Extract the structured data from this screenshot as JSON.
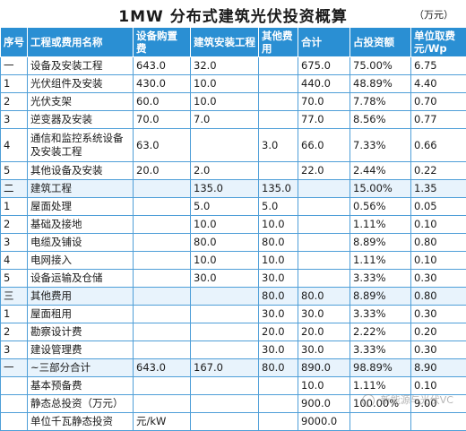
{
  "title": "1MW 分布式建筑光伏投资概算",
  "unit": "（万元）",
  "headers": {
    "seq": "序号",
    "name": "工程或费用名称",
    "equipment": "设备购置费",
    "construction": "建筑安装工程",
    "other": "其他费用",
    "total": "合计",
    "ratio": "占投资额",
    "unit_cost": "单位取费元/Wp"
  },
  "rows": [
    {
      "seq": "一",
      "name": "设备及安装工程",
      "equipment": "643.0",
      "construction": "32.0",
      "other": "",
      "total": "675.0",
      "ratio": "75.00%",
      "unit_cost": "6.75"
    },
    {
      "seq": "1",
      "name": "光伏组件及安装",
      "equipment": "430.0",
      "construction": "10.0",
      "other": "",
      "total": "440.0",
      "ratio": "48.89%",
      "unit_cost": "4.40"
    },
    {
      "seq": "2",
      "name": "光伏支架",
      "equipment": "60.0",
      "construction": "10.0",
      "other": "",
      "total": "70.0",
      "ratio": "7.78%",
      "unit_cost": "0.70"
    },
    {
      "seq": "3",
      "name": "逆变器及安装",
      "equipment": "70.0",
      "construction": "7.0",
      "other": "",
      "total": "77.0",
      "ratio": "8.56%",
      "unit_cost": "0.77"
    },
    {
      "seq": "4",
      "name": "通信和监控系统设备及安装工程",
      "equipment": "63.0",
      "construction": "",
      "other": "3.0",
      "total": "66.0",
      "ratio": "7.33%",
      "unit_cost": "0.66"
    },
    {
      "seq": "5",
      "name": "其他设备及安装",
      "equipment": "20.0",
      "construction": "2.0",
      "other": "",
      "total": "22.0",
      "ratio": "2.44%",
      "unit_cost": "0.22"
    },
    {
      "seq": "二",
      "name": "建筑工程",
      "equipment": "",
      "construction": "135.0",
      "other": "135.0",
      "total": "",
      "ratio": "15.00%",
      "unit_cost": "1.35"
    },
    {
      "seq": "1",
      "name": "屋面处理",
      "equipment": "",
      "construction": "5.0",
      "other": "5.0",
      "total": "",
      "ratio": "0.56%",
      "unit_cost": "0.05"
    },
    {
      "seq": "2",
      "name": "基础及接地",
      "equipment": "",
      "construction": "10.0",
      "other": "10.0",
      "total": "",
      "ratio": "1.11%",
      "unit_cost": "0.10"
    },
    {
      "seq": "3",
      "name": "电缆及铺设",
      "equipment": "",
      "construction": "80.0",
      "other": "80.0",
      "total": "",
      "ratio": "8.89%",
      "unit_cost": "0.80"
    },
    {
      "seq": "4",
      "name": "电网接入",
      "equipment": "",
      "construction": "10.0",
      "other": "10.0",
      "total": "",
      "ratio": "1.11%",
      "unit_cost": "0.10"
    },
    {
      "seq": "5",
      "name": "设备运输及仓储",
      "equipment": "",
      "construction": "30.0",
      "other": "30.0",
      "total": "",
      "ratio": "3.33%",
      "unit_cost": "0.30"
    },
    {
      "seq": "三",
      "name": "其他费用",
      "equipment": "",
      "construction": "",
      "other": "80.0",
      "total": "80.0",
      "ratio": "8.89%",
      "unit_cost": "0.80"
    },
    {
      "seq": "1",
      "name": "屋面租用",
      "equipment": "",
      "construction": "",
      "other": "30.0",
      "total": "30.0",
      "ratio": "3.33%",
      "unit_cost": "0.30"
    },
    {
      "seq": "2",
      "name": "勘察设计费",
      "equipment": "",
      "construction": "",
      "other": "20.0",
      "total": "20.0",
      "ratio": "2.22%",
      "unit_cost": "0.20"
    },
    {
      "seq": "3",
      "name": "建设管理费",
      "equipment": "",
      "construction": "",
      "other": "30.0",
      "total": "30.0",
      "ratio": "3.33%",
      "unit_cost": "0.30"
    },
    {
      "seq": "一",
      "name": "~三部分合计",
      "equipment": "643.0",
      "construction": "167.0",
      "other": "80.0",
      "total": "890.0",
      "ratio": "98.89%",
      "unit_cost": "8.90"
    },
    {
      "seq": "",
      "name": "基本预备费",
      "equipment": "",
      "construction": "",
      "other": "",
      "total": "10.0",
      "ratio": "1.11%",
      "unit_cost": "0.10"
    },
    {
      "seq": "",
      "name": "静态总投资（万元）",
      "equipment": "",
      "construction": "",
      "other": "",
      "total": "900.0",
      "ratio": "100.00%",
      "unit_cost": "9.00"
    },
    {
      "seq": "",
      "name": "单位千瓦静态投资",
      "equipment": "元/kW",
      "construction": "",
      "other": "",
      "total": "9000.0",
      "ratio": "",
      "unit_cost": ""
    }
  ],
  "watermark": "新能源与光伏VC",
  "icons": {
    "watermark": "wechat-icon"
  }
}
